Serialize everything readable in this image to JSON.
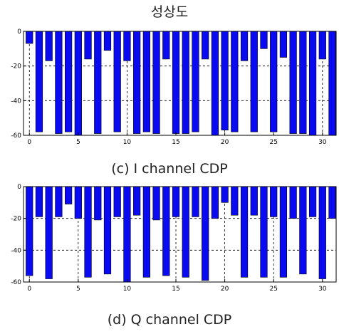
{
  "title": "성상도",
  "colors": {
    "bar_fill": "#0a0af0",
    "bar_stroke": "#000000",
    "axis": "#000000"
  },
  "chart_data": [
    {
      "type": "bar",
      "caption": "(c)  I  channel  CDP",
      "x": [
        0,
        1,
        2,
        3,
        4,
        5,
        6,
        7,
        8,
        9,
        10,
        11,
        12,
        13,
        14,
        15,
        16,
        17,
        18,
        19,
        20,
        21,
        22,
        23,
        24,
        25,
        26,
        27,
        28,
        29,
        30,
        31
      ],
      "values": [
        -7,
        -58,
        -17,
        -59,
        -58,
        -60,
        -16,
        -59,
        -11,
        -58,
        -17,
        -59,
        -58,
        -59,
        -16,
        -59,
        -59,
        -58,
        -16,
        -60,
        -57,
        -58,
        -17,
        -58,
        -10,
        -58,
        -15,
        -59,
        -59,
        -60,
        -16,
        -60
      ],
      "xlim": [
        -0.6,
        31.4
      ],
      "ylim": [
        -60,
        0
      ],
      "xticks": [
        0,
        5,
        10,
        15,
        20,
        25,
        30
      ],
      "yticks": [
        0,
        -20,
        -40,
        -60
      ],
      "grid": "dashed"
    },
    {
      "type": "bar",
      "caption": "(d)  Q  channel  CDP",
      "x": [
        0,
        1,
        2,
        3,
        4,
        5,
        6,
        7,
        8,
        9,
        10,
        11,
        12,
        13,
        14,
        15,
        16,
        17,
        18,
        19,
        20,
        21,
        22,
        23,
        24,
        25,
        26,
        27,
        28,
        29,
        30,
        31
      ],
      "values": [
        -56,
        -19,
        -58,
        -19,
        -11,
        -20,
        -57,
        -21,
        -55,
        -19,
        -60,
        -18,
        -57,
        -21,
        -56,
        -19,
        -57,
        -19,
        -59,
        -20,
        -10,
        -18,
        -57,
        -18,
        -57,
        -19,
        -57,
        -20,
        -55,
        -19,
        -58,
        -20
      ],
      "xlim": [
        -0.6,
        31.4
      ],
      "ylim": [
        -60,
        0
      ],
      "xticks": [
        0,
        5,
        10,
        15,
        20,
        25,
        30
      ],
      "yticks": [
        0,
        -20,
        -40,
        -60
      ],
      "grid": "dashed"
    }
  ]
}
